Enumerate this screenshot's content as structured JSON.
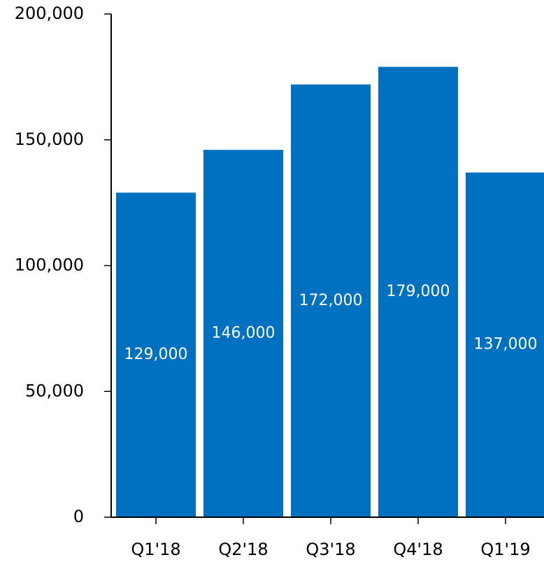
{
  "chart_data": {
    "type": "bar",
    "title": "",
    "xlabel": "",
    "ylabel": "",
    "categories": [
      "Q1'18",
      "Q2'18",
      "Q3'18",
      "Q4'18",
      "Q1'19"
    ],
    "values": [
      129000,
      146000,
      172000,
      179000,
      137000
    ],
    "data_labels": [
      "129,000",
      "146,000",
      "172,000",
      "179,000",
      "137,000"
    ],
    "ylim": [
      0,
      200000
    ],
    "yticks": [
      0,
      50000,
      100000,
      150000,
      200000
    ],
    "ytick_labels": [
      "0",
      "50,000",
      "100,000",
      "150,000",
      "200,000"
    ],
    "grid": false,
    "colors": {
      "bar": "#0070c0",
      "axis": "#000000",
      "label": "#ffffff"
    }
  }
}
